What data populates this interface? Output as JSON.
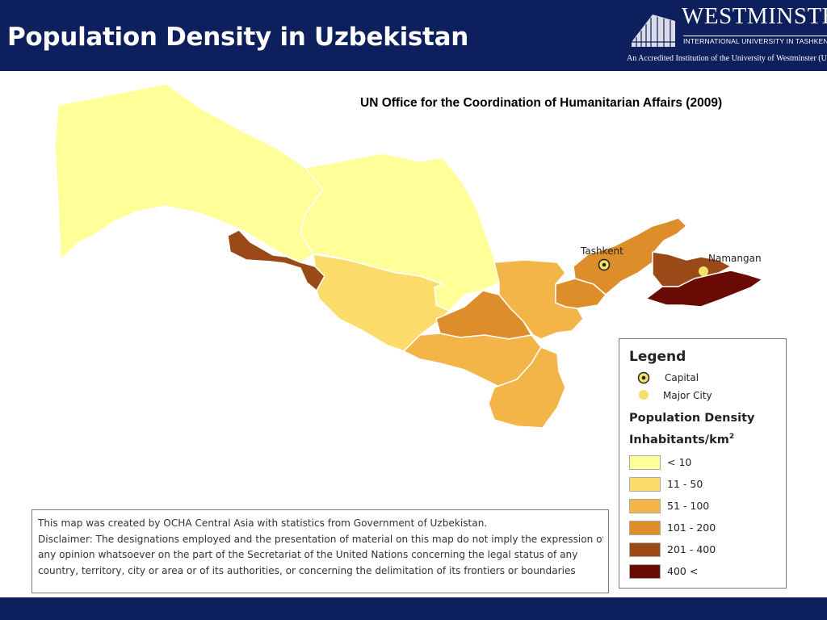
{
  "slide": {
    "title": "Population Density in Uzbekistan",
    "source_title": "UN Office for the Coordination of Humanitarian Affairs (2009)",
    "header_color": "#0d1f5c"
  },
  "logo": {
    "name": "WESTMINSTER",
    "subtitle": "INTERNATIONAL UNIVERSITY IN TASHKENT",
    "accreditation": "An Accredited Institution of the University of Westminster (UK)"
  },
  "map": {
    "cities": [
      {
        "name": "Tashkent",
        "type": "Capital"
      },
      {
        "name": "Namangan",
        "type": "Major City"
      }
    ],
    "region_density_classes": [
      "< 10",
      "11 - 50",
      "51 - 100",
      "101 - 200",
      "201 - 400",
      "400 <"
    ]
  },
  "legend": {
    "title": "Legend",
    "symbols": [
      {
        "label": "Capital",
        "icon": "capital-icon"
      },
      {
        "label": "Major City",
        "icon": "major-city-icon"
      }
    ],
    "heading": "Population Density",
    "units": "Inhabitants/km",
    "units_superscript": "2",
    "classes": [
      {
        "label": "< 10",
        "color": "#ffff99"
      },
      {
        "label": "11 - 50",
        "color": "#fbdc6a"
      },
      {
        "label": "51 - 100",
        "color": "#f3b548"
      },
      {
        "label": "101 - 200",
        "color": "#dd8d2a"
      },
      {
        "label": "201 - 400",
        "color": "#9b4a17"
      },
      {
        "label": "400 <",
        "color": "#6a0a05"
      }
    ]
  },
  "disclaimer": {
    "lines": [
      "This map was created by OCHA Central Asia with statistics from  Government of Uzbekistan.",
      "Disclaimer: The designations employed and the presentation of material on this map do not imply the expression of",
      "any opinion whatsoever on the part  of  the Secretariat of the United Nations concerning the legal status of any",
      "country, territory, city or area or of its authorities, or concerning the delimitation of its frontiers or boundaries"
    ]
  }
}
